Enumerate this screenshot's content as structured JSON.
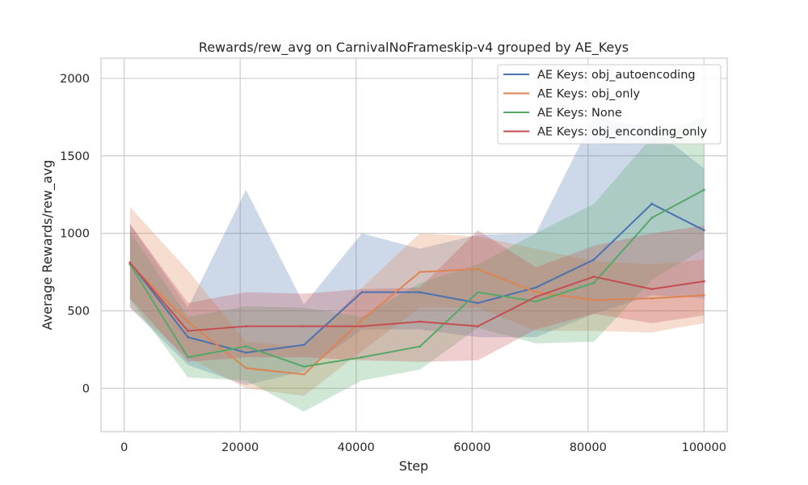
{
  "chart_data": {
    "type": "line",
    "title": "Rewards/rew_avg on CarnivalNoFrameskip-v4 grouped by AE_Keys",
    "xlabel": "Step",
    "ylabel": "Average Rewards/rew_avg",
    "xlim": [
      -4000,
      104000
    ],
    "ylim": [
      -280,
      2130
    ],
    "xticks": [
      0,
      20000,
      40000,
      60000,
      80000,
      100000
    ],
    "yticks": [
      0,
      500,
      1000,
      1500,
      2000
    ],
    "grid": true,
    "legend_position": "top-right",
    "band": "shaded region around each line",
    "x": [
      1000,
      11000,
      21000,
      31000,
      41000,
      51000,
      61000,
      71000,
      81000,
      91000,
      100000
    ],
    "series": [
      {
        "name": "AE Keys: obj_autoencoding",
        "color": "#4c72b0",
        "values": [
          810,
          330,
          230,
          280,
          620,
          620,
          550,
          650,
          830,
          1190,
          1020
        ],
        "lower": [
          520,
          150,
          20,
          110,
          380,
          380,
          330,
          330,
          480,
          600,
          580
        ],
        "upper": [
          1060,
          520,
          1280,
          540,
          1000,
          900,
          990,
          1000,
          1750,
          1680,
          1420
        ]
      },
      {
        "name": "AE Keys: obj_only",
        "color": "#dd8452",
        "values": [
          800,
          430,
          130,
          90,
          440,
          750,
          770,
          620,
          570,
          580,
          600
        ],
        "lower": [
          520,
          200,
          0,
          -50,
          240,
          520,
          520,
          370,
          370,
          360,
          420
        ],
        "upper": [
          1170,
          760,
          300,
          270,
          650,
          1000,
          980,
          900,
          820,
          800,
          830
        ]
      },
      {
        "name": "AE Keys: None",
        "color": "#55a868",
        "values": [
          800,
          200,
          270,
          140,
          200,
          270,
          620,
          560,
          680,
          1100,
          1280
        ],
        "lower": [
          570,
          70,
          50,
          -150,
          50,
          120,
          390,
          290,
          300,
          700,
          900
        ],
        "upper": [
          1010,
          460,
          530,
          520,
          460,
          680,
          800,
          1000,
          1190,
          1620,
          1750
        ]
      },
      {
        "name": "AE Keys: obj_enconding_only",
        "color": "#c44e52",
        "values": [
          810,
          370,
          400,
          400,
          400,
          430,
          400,
          590,
          720,
          640,
          690
        ],
        "lower": [
          580,
          170,
          200,
          200,
          180,
          170,
          180,
          380,
          480,
          420,
          470
        ],
        "upper": [
          1060,
          550,
          620,
          610,
          640,
          650,
          1020,
          780,
          920,
          1000,
          1050
        ]
      }
    ]
  }
}
